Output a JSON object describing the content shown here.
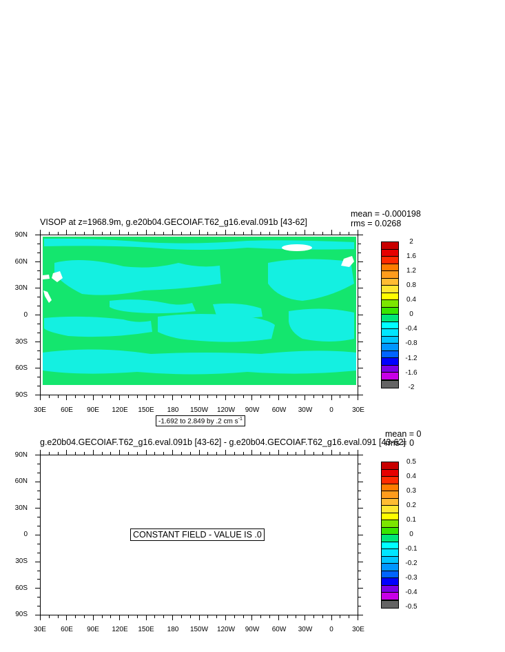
{
  "panel1": {
    "title": "VISOP at z=1968.9m, g.e20b04.GECOIAF.T62_g16.eval.091b [43-62]",
    "mean": "mean = -0.000198",
    "rms": "rms = 0.0268",
    "contour_info": "-1.692 to 2.849 by .2 cm s",
    "contour_unit_exp": "-1"
  },
  "panel2": {
    "title": "g.e20b04.GECOIAF.T62_g16.eval.091b [43-62] - g.e20b04.GECOIAF.T62_g16.eval.091 [43-62]",
    "mean": "mean = 0",
    "rms": "rms = 0",
    "message": "CONSTANT FIELD - VALUE IS .0"
  },
  "lat_labels": [
    "90N",
    "60N",
    "30N",
    "0",
    "30S",
    "60S",
    "90S"
  ],
  "lon_labels": [
    "30E",
    "60E",
    "90E",
    "120E",
    "150E",
    "180",
    "150W",
    "120W",
    "90W",
    "60W",
    "30W",
    "0",
    "30E"
  ],
  "legend1_labels": [
    "2",
    "1.6",
    "1.2",
    "0.8",
    "0.4",
    "0",
    "-0.4",
    "-0.8",
    "-1.2",
    "-1.6",
    "-2"
  ],
  "legend2_labels": [
    "0.5",
    "0.4",
    "0.3",
    "0.2",
    "0.1",
    "0",
    "-0.1",
    "-0.2",
    "-0.3",
    "-0.4",
    "-0.5"
  ],
  "colors": {
    "palette": [
      "#c80000",
      "#e60000",
      "#ff2a00",
      "#ff7c00",
      "#ff9c1c",
      "#ffbc32",
      "#ffe632",
      "#fffc00",
      "#7ce600",
      "#38e600",
      "#00e678",
      "#00ffff",
      "#00e6ff",
      "#00c6ff",
      "#0096ff",
      "#0064ff",
      "#0000ff",
      "#7c00e6",
      "#c800e6",
      "#c8c8c8",
      "#646464"
    ],
    "land": "#14e66e",
    "ocean_pattern": "#14f0e1",
    "missing": "#ffffff"
  }
}
